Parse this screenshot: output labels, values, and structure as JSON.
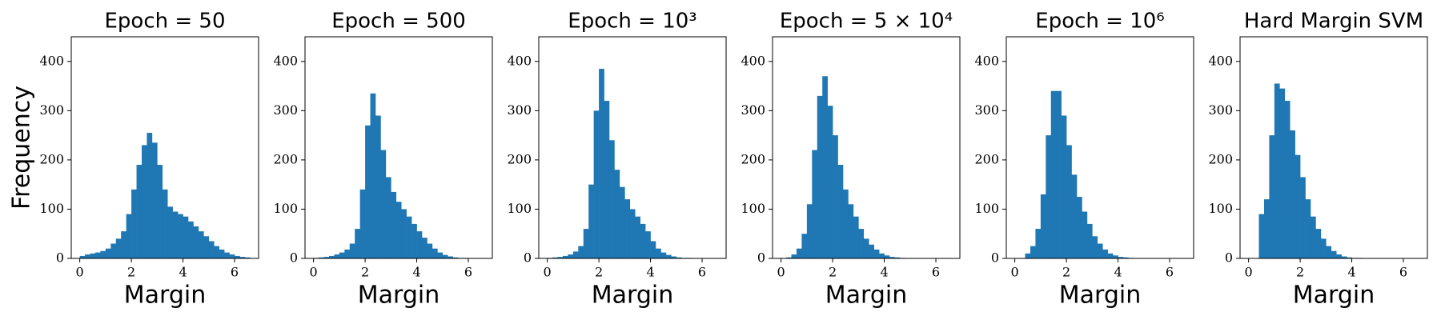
{
  "chart_data": [
    {
      "type": "histogram",
      "title": "Epoch = 50",
      "x_label": "Margin",
      "y_label": "Frequency",
      "color": "#1f77b4",
      "bins": [
        0,
        0.2,
        0.4,
        0.6,
        0.8,
        1.0,
        1.2,
        1.4,
        1.6,
        1.8,
        2.0,
        2.2,
        2.4,
        2.6,
        2.8,
        3.0,
        3.2,
        3.4,
        3.6,
        3.8,
        4.0,
        4.2,
        4.4,
        4.6,
        4.8,
        5.0,
        5.2,
        5.4,
        5.6,
        5.8,
        6.0,
        6.2,
        6.4,
        6.6
      ],
      "values": [
        5,
        8,
        10,
        12,
        15,
        20,
        30,
        40,
        55,
        90,
        140,
        190,
        230,
        255,
        235,
        190,
        140,
        105,
        95,
        90,
        85,
        75,
        65,
        55,
        45,
        35,
        25,
        18,
        12,
        8,
        5,
        3,
        2
      ],
      "xlim": [
        -0.33,
        6.93
      ],
      "ylim": [
        0,
        450
      ],
      "xticks": [
        0,
        2,
        4,
        6
      ],
      "yticks": [
        0,
        100,
        200,
        300,
        400
      ]
    },
    {
      "type": "histogram",
      "title": "Epoch = 500",
      "x_label": "Margin",
      "color": "#1f77b4",
      "bins": [
        0,
        0.2,
        0.4,
        0.6,
        0.8,
        1.0,
        1.2,
        1.4,
        1.6,
        1.8,
        2.0,
        2.2,
        2.4,
        2.6,
        2.8,
        3.0,
        3.2,
        3.4,
        3.6,
        3.8,
        4.0,
        4.2,
        4.4,
        4.6,
        4.8,
        5.0,
        5.2,
        5.4,
        5.6,
        5.8,
        6.0,
        6.2,
        6.4,
        6.6
      ],
      "values": [
        1,
        2,
        3,
        5,
        8,
        12,
        18,
        30,
        60,
        140,
        270,
        335,
        290,
        220,
        165,
        135,
        115,
        100,
        85,
        70,
        55,
        42,
        30,
        20,
        12,
        7,
        4,
        2,
        1,
        1,
        0,
        0,
        0
      ],
      "xlim": [
        -0.33,
        6.93
      ],
      "ylim": [
        0,
        450
      ],
      "xticks": [
        0,
        2,
        4,
        6
      ],
      "yticks": [
        0,
        100,
        200,
        300,
        400
      ]
    },
    {
      "type": "histogram",
      "title": "Epoch = 10³",
      "x_label": "Margin",
      "color": "#1f77b4",
      "bins": [
        0,
        0.2,
        0.4,
        0.6,
        0.8,
        1.0,
        1.2,
        1.4,
        1.6,
        1.8,
        2.0,
        2.2,
        2.4,
        2.6,
        2.8,
        3.0,
        3.2,
        3.4,
        3.6,
        3.8,
        4.0,
        4.2,
        4.4,
        4.6,
        4.8,
        5.0,
        5.2,
        5.4,
        5.6,
        5.8,
        6.0,
        6.2,
        6.4,
        6.6
      ],
      "values": [
        1,
        2,
        3,
        5,
        8,
        14,
        25,
        60,
        150,
        300,
        385,
        320,
        240,
        180,
        145,
        120,
        100,
        85,
        70,
        55,
        35,
        20,
        12,
        7,
        4,
        2,
        1,
        1,
        0,
        0,
        0,
        0,
        0
      ],
      "xlim": [
        -0.33,
        6.93
      ],
      "ylim": [
        0,
        450
      ],
      "xticks": [
        0,
        2,
        4,
        6
      ],
      "yticks": [
        0,
        100,
        200,
        300,
        400
      ]
    },
    {
      "type": "histogram",
      "title": "Epoch = 5 × 10⁴",
      "x_label": "Margin",
      "color": "#1f77b4",
      "bins": [
        0,
        0.2,
        0.4,
        0.6,
        0.8,
        1.0,
        1.2,
        1.4,
        1.6,
        1.8,
        2.0,
        2.2,
        2.4,
        2.6,
        2.8,
        3.0,
        3.2,
        3.4,
        3.6,
        3.8,
        4.0,
        4.2,
        4.4,
        4.6,
        4.8,
        5.0,
        5.2,
        5.4,
        5.6,
        5.8,
        6.0,
        6.2,
        6.4,
        6.6
      ],
      "values": [
        0,
        2,
        8,
        20,
        50,
        110,
        220,
        330,
        370,
        310,
        250,
        190,
        140,
        110,
        85,
        60,
        40,
        28,
        18,
        10,
        6,
        3,
        2,
        1,
        0,
        0,
        0,
        0,
        0,
        0,
        0,
        0,
        0
      ],
      "xlim": [
        -0.33,
        6.93
      ],
      "ylim": [
        0,
        450
      ],
      "xticks": [
        0,
        2,
        4,
        6
      ],
      "yticks": [
        0,
        100,
        200,
        300,
        400
      ]
    },
    {
      "type": "histogram",
      "title": "Epoch = 10⁶",
      "x_label": "Margin",
      "color": "#1f77b4",
      "bins": [
        0,
        0.2,
        0.4,
        0.6,
        0.8,
        1.0,
        1.2,
        1.4,
        1.6,
        1.8,
        2.0,
        2.2,
        2.4,
        2.6,
        2.8,
        3.0,
        3.2,
        3.4,
        3.6,
        3.8,
        4.0,
        4.2,
        4.4,
        4.6,
        4.8,
        5.0,
        5.2,
        5.4,
        5.6,
        5.8,
        6.0,
        6.2,
        6.4,
        6.6
      ],
      "values": [
        0,
        0,
        10,
        25,
        60,
        130,
        250,
        340,
        340,
        290,
        230,
        170,
        125,
        95,
        70,
        45,
        30,
        18,
        10,
        6,
        3,
        2,
        1,
        0,
        0,
        0,
        0,
        0,
        0,
        0,
        0,
        0,
        0
      ],
      "xlim": [
        -0.33,
        6.93
      ],
      "ylim": [
        0,
        450
      ],
      "xticks": [
        0,
        2,
        4,
        6
      ],
      "yticks": [
        0,
        100,
        200,
        300,
        400
      ]
    },
    {
      "type": "histogram",
      "title": "Hard Margin SVM",
      "x_label": "Margin",
      "color": "#1f77b4",
      "bins": [
        0,
        0.2,
        0.4,
        0.6,
        0.8,
        1.0,
        1.2,
        1.4,
        1.6,
        1.8,
        2.0,
        2.2,
        2.4,
        2.6,
        2.8,
        3.0,
        3.2,
        3.4,
        3.6,
        3.8,
        4.0,
        4.2,
        4.4,
        4.6,
        4.8,
        5.0,
        5.2,
        5.4,
        5.6,
        5.8,
        6.0,
        6.2,
        6.4,
        6.6
      ],
      "values": [
        0,
        0,
        90,
        120,
        250,
        355,
        345,
        320,
        260,
        210,
        165,
        120,
        85,
        60,
        40,
        25,
        15,
        8,
        4,
        2,
        1,
        1,
        0,
        0,
        0,
        0,
        0,
        0,
        0,
        0,
        0,
        0,
        0
      ],
      "xlim": [
        -0.33,
        6.93
      ],
      "ylim": [
        0,
        450
      ],
      "xticks": [
        0,
        2,
        4,
        6
      ],
      "yticks": [
        0,
        100,
        200,
        300,
        400
      ]
    }
  ]
}
